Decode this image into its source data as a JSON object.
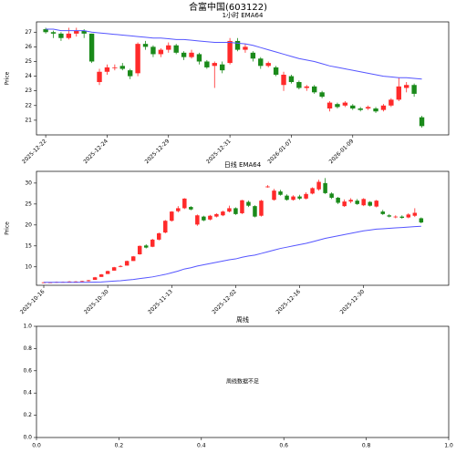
{
  "title": "合富中国(603122)",
  "chart_data": [
    {
      "type": "candlestick",
      "title": "1小时 EMA64",
      "ylabel": "Price",
      "up_color": "#ff2a2a",
      "down_color": "#1a8a1a",
      "categories": [
        "2025-12-22",
        null,
        null,
        null,
        null,
        null,
        null,
        null,
        "2025-12-24",
        null,
        null,
        null,
        null,
        null,
        null,
        null,
        "2025-12-29",
        null,
        null,
        null,
        null,
        null,
        null,
        null,
        "2025-12-31",
        null,
        null,
        null,
        null,
        null,
        null,
        null,
        "2026-01-07",
        null,
        null,
        null,
        null,
        null,
        null,
        null,
        "2026-01-09",
        null,
        null,
        null,
        null,
        null,
        null,
        null,
        null,
        null
      ],
      "open": [
        27.2,
        27.0,
        26.9,
        26.6,
        26.9,
        27.1,
        26.9,
        23.6,
        24.3,
        24.6,
        24.7,
        24.4,
        24.2,
        26.2,
        26.0,
        25.5,
        25.8,
        26.1,
        25.6,
        25.3,
        25.5,
        25.0,
        24.7,
        24.8,
        24.9,
        26.4,
        25.8,
        25.6,
        25.2,
        24.7,
        24.6,
        23.4,
        24.0,
        23.6,
        23.2,
        23.3,
        22.9,
        21.8,
        22.1,
        22.0,
        22.0,
        21.8,
        21.8,
        21.8,
        21.7,
        22.0,
        22.4,
        23.2,
        23.4,
        21.2
      ],
      "high": [
        27.3,
        27.1,
        27.0,
        27.3,
        27.3,
        27.2,
        26.9,
        24.5,
        24.8,
        24.8,
        24.9,
        24.5,
        26.3,
        26.4,
        26.1,
        25.9,
        26.3,
        26.2,
        25.7,
        25.8,
        25.6,
        25.1,
        25.0,
        25.0,
        26.6,
        26.6,
        26.2,
        25.7,
        25.3,
        25.0,
        24.7,
        24.3,
        24.1,
        23.7,
        23.4,
        23.4,
        23.0,
        22.3,
        22.2,
        22.3,
        22.1,
        21.9,
        22.0,
        21.9,
        22.1,
        22.5,
        23.9,
        23.6,
        23.5,
        21.3
      ],
      "low": [
        26.9,
        26.6,
        26.4,
        26.5,
        26.7,
        26.6,
        24.9,
        23.4,
        24.1,
        24.4,
        24.4,
        23.8,
        24.0,
        25.8,
        25.3,
        25.3,
        25.6,
        25.5,
        25.1,
        25.2,
        24.8,
        24.5,
        23.2,
        24.2,
        24.8,
        25.7,
        25.6,
        25.0,
        24.5,
        24.6,
        24.0,
        23.0,
        23.5,
        23.1,
        23.0,
        22.8,
        22.5,
        21.6,
        21.8,
        21.9,
        21.7,
        21.6,
        21.7,
        21.5,
        21.6,
        21.9,
        22.3,
        22.9,
        22.6,
        20.5
      ],
      "close": [
        27.0,
        26.9,
        26.6,
        26.9,
        27.1,
        26.9,
        25.0,
        24.3,
        24.6,
        24.6,
        24.5,
        24.0,
        26.2,
        26.0,
        25.5,
        25.8,
        26.1,
        25.6,
        25.3,
        25.6,
        25.0,
        24.6,
        24.9,
        24.4,
        26.4,
        25.8,
        26.0,
        25.2,
        24.7,
        24.9,
        24.1,
        24.1,
        23.6,
        23.2,
        23.3,
        22.9,
        22.6,
        22.2,
        21.9,
        22.2,
        21.8,
        21.7,
        21.9,
        21.6,
        22.0,
        22.4,
        23.3,
        23.4,
        22.8,
        20.6
      ],
      "ema": {
        "color": "#5555ff",
        "values": [
          27.2,
          27.2,
          27.1,
          27.1,
          27.1,
          27.1,
          27.0,
          26.95,
          26.9,
          26.85,
          26.8,
          26.75,
          26.7,
          26.65,
          26.6,
          26.6,
          26.55,
          26.5,
          26.5,
          26.45,
          26.4,
          26.35,
          26.3,
          26.3,
          26.3,
          26.25,
          26.2,
          26.1,
          25.95,
          25.8,
          25.65,
          25.5,
          25.35,
          25.2,
          25.1,
          25.0,
          24.85,
          24.7,
          24.6,
          24.5,
          24.4,
          24.3,
          24.2,
          24.1,
          24.0,
          23.95,
          23.9,
          23.9,
          23.85,
          23.8
        ]
      },
      "ylim": [
        20.0,
        27.7
      ],
      "yticks": [
        21,
        22,
        23,
        24,
        25,
        26,
        27
      ]
    },
    {
      "type": "candlestick",
      "title": "日线 EMA64",
      "ylabel": "Price",
      "up_color": "#ff2a2a",
      "down_color": "#1a8a1a",
      "categories": [
        "2025-10-16",
        null,
        null,
        null,
        null,
        null,
        null,
        null,
        null,
        null,
        "2025-10-30",
        null,
        null,
        null,
        null,
        null,
        null,
        null,
        null,
        null,
        "2025-11-13",
        null,
        null,
        null,
        null,
        null,
        null,
        null,
        null,
        null,
        "2025-12-02",
        null,
        null,
        null,
        null,
        null,
        null,
        null,
        null,
        null,
        "2025-12-16",
        null,
        null,
        null,
        null,
        null,
        null,
        null,
        null,
        null,
        "2025-12-30",
        null,
        null,
        null,
        null,
        null,
        null,
        null,
        null,
        null
      ],
      "open": [
        6.3,
        6.3,
        6.3,
        6.4,
        6.4,
        6.5,
        6.5,
        6.6,
        6.9,
        7.6,
        8.3,
        9.1,
        10.0,
        10.3,
        11.4,
        13.0,
        15.1,
        14.8,
        16.5,
        18.2,
        21.0,
        23.3,
        24.0,
        24.3,
        20.1,
        22.0,
        21.3,
        22.0,
        22.3,
        23.2,
        24.0,
        22.8,
        25.5,
        24.5,
        22.2,
        29.0,
        26.0,
        28.0,
        27.0,
        26.0,
        26.8,
        26.3,
        27.5,
        28.5,
        30.0,
        27.5,
        26.5,
        24.5,
        25.6,
        25.8,
        24.7,
        25.5,
        24.4,
        23.2,
        22.3,
        21.9,
        22.0,
        21.8,
        22.2,
        21.6
      ],
      "high": [
        6.4,
        6.4,
        6.5,
        6.5,
        6.6,
        6.6,
        6.7,
        6.9,
        7.6,
        8.3,
        9.1,
        10.0,
        10.4,
        11.5,
        12.6,
        15.1,
        15.4,
        16.7,
        18.2,
        21.2,
        23.3,
        24.5,
        26.4,
        24.5,
        22.5,
        22.2,
        22.4,
        22.8,
        23.4,
        24.6,
        24.2,
        26.0,
        25.8,
        24.7,
        26.0,
        29.5,
        28.6,
        28.4,
        27.3,
        27.1,
        27.2,
        27.8,
        29.0,
        30.8,
        31.2,
        27.8,
        26.7,
        26.1,
        26.4,
        26.2,
        26.4,
        25.7,
        26.0,
        23.6,
        22.6,
        22.3,
        22.3,
        22.8,
        24.0,
        21.8
      ],
      "low": [
        6.2,
        6.2,
        6.2,
        6.3,
        6.3,
        6.4,
        6.4,
        6.5,
        6.9,
        7.6,
        8.3,
        9.1,
        9.9,
        10.3,
        11.4,
        12.9,
        14.4,
        14.7,
        16.3,
        18.0,
        20.8,
        23.0,
        23.8,
        23.5,
        19.8,
        20.9,
        21.1,
        21.8,
        22.1,
        23.0,
        22.4,
        22.6,
        24.3,
        21.8,
        22.0,
        28.9,
        25.8,
        27.0,
        25.8,
        25.8,
        26.0,
        26.1,
        27.3,
        28.2,
        27.4,
        26.2,
        25.0,
        24.3,
        25.2,
        24.8,
        24.5,
        24.4,
        24.2,
        22.4,
        21.8,
        21.6,
        21.5,
        21.6,
        21.9,
        20.4
      ],
      "close": [
        6.3,
        6.3,
        6.4,
        6.4,
        6.5,
        6.5,
        6.6,
        6.8,
        7.5,
        8.2,
        9.0,
        9.9,
        10.2,
        11.4,
        12.5,
        15.0,
        14.6,
        16.5,
        18.0,
        21.0,
        23.2,
        24.0,
        26.3,
        23.7,
        22.3,
        21.1,
        22.2,
        22.6,
        23.2,
        24.0,
        22.6,
        25.9,
        24.6,
        22.0,
        25.8,
        29.2,
        28.2,
        27.2,
        26.0,
        26.8,
        26.3,
        27.4,
        28.8,
        30.3,
        27.6,
        26.5,
        25.3,
        25.6,
        26.0,
        25.0,
        26.2,
        24.6,
        25.8,
        22.6,
        22.0,
        22.0,
        21.7,
        22.5,
        22.9,
        20.6
      ],
      "ema": {
        "color": "#5555ff",
        "values": [
          6.3,
          6.3,
          6.3,
          6.3,
          6.3,
          6.3,
          6.3,
          6.3,
          6.35,
          6.4,
          6.5,
          6.6,
          6.7,
          6.85,
          7.0,
          7.2,
          7.4,
          7.6,
          7.9,
          8.2,
          8.6,
          9.0,
          9.5,
          9.8,
          10.2,
          10.5,
          10.8,
          11.1,
          11.4,
          11.7,
          11.9,
          12.3,
          12.6,
          12.8,
          13.2,
          13.6,
          14.0,
          14.4,
          14.7,
          15.0,
          15.3,
          15.6,
          16.0,
          16.4,
          16.8,
          17.1,
          17.4,
          17.7,
          18.0,
          18.3,
          18.6,
          18.8,
          19.0,
          19.1,
          19.2,
          19.3,
          19.4,
          19.5,
          19.6,
          19.7
        ]
      },
      "ylim": [
        5.6,
        32.8
      ],
      "yticks": [
        10,
        15,
        20,
        25,
        30
      ]
    },
    {
      "type": "empty",
      "title": "周线",
      "annotation": "周线数据不足",
      "xlim": [
        0,
        1
      ],
      "ylim": [
        0,
        1
      ],
      "xticks": [
        {
          "value": 0,
          "label": "0.0"
        },
        {
          "value": 0.2,
          "label": "0.2"
        },
        {
          "value": 0.4,
          "label": "0.4"
        },
        {
          "value": 0.6,
          "label": "0.6"
        },
        {
          "value": 0.8,
          "label": "0.8"
        },
        {
          "value": 1,
          "label": "1.0"
        }
      ],
      "yticks": [
        {
          "value": 0,
          "label": "0.0"
        },
        {
          "value": 0.2,
          "label": "0.2"
        },
        {
          "value": 0.4,
          "label": "0.4"
        },
        {
          "value": 0.6,
          "label": "0.6"
        },
        {
          "value": 0.8,
          "label": "0.8"
        },
        {
          "value": 1,
          "label": "1.0"
        }
      ]
    }
  ]
}
